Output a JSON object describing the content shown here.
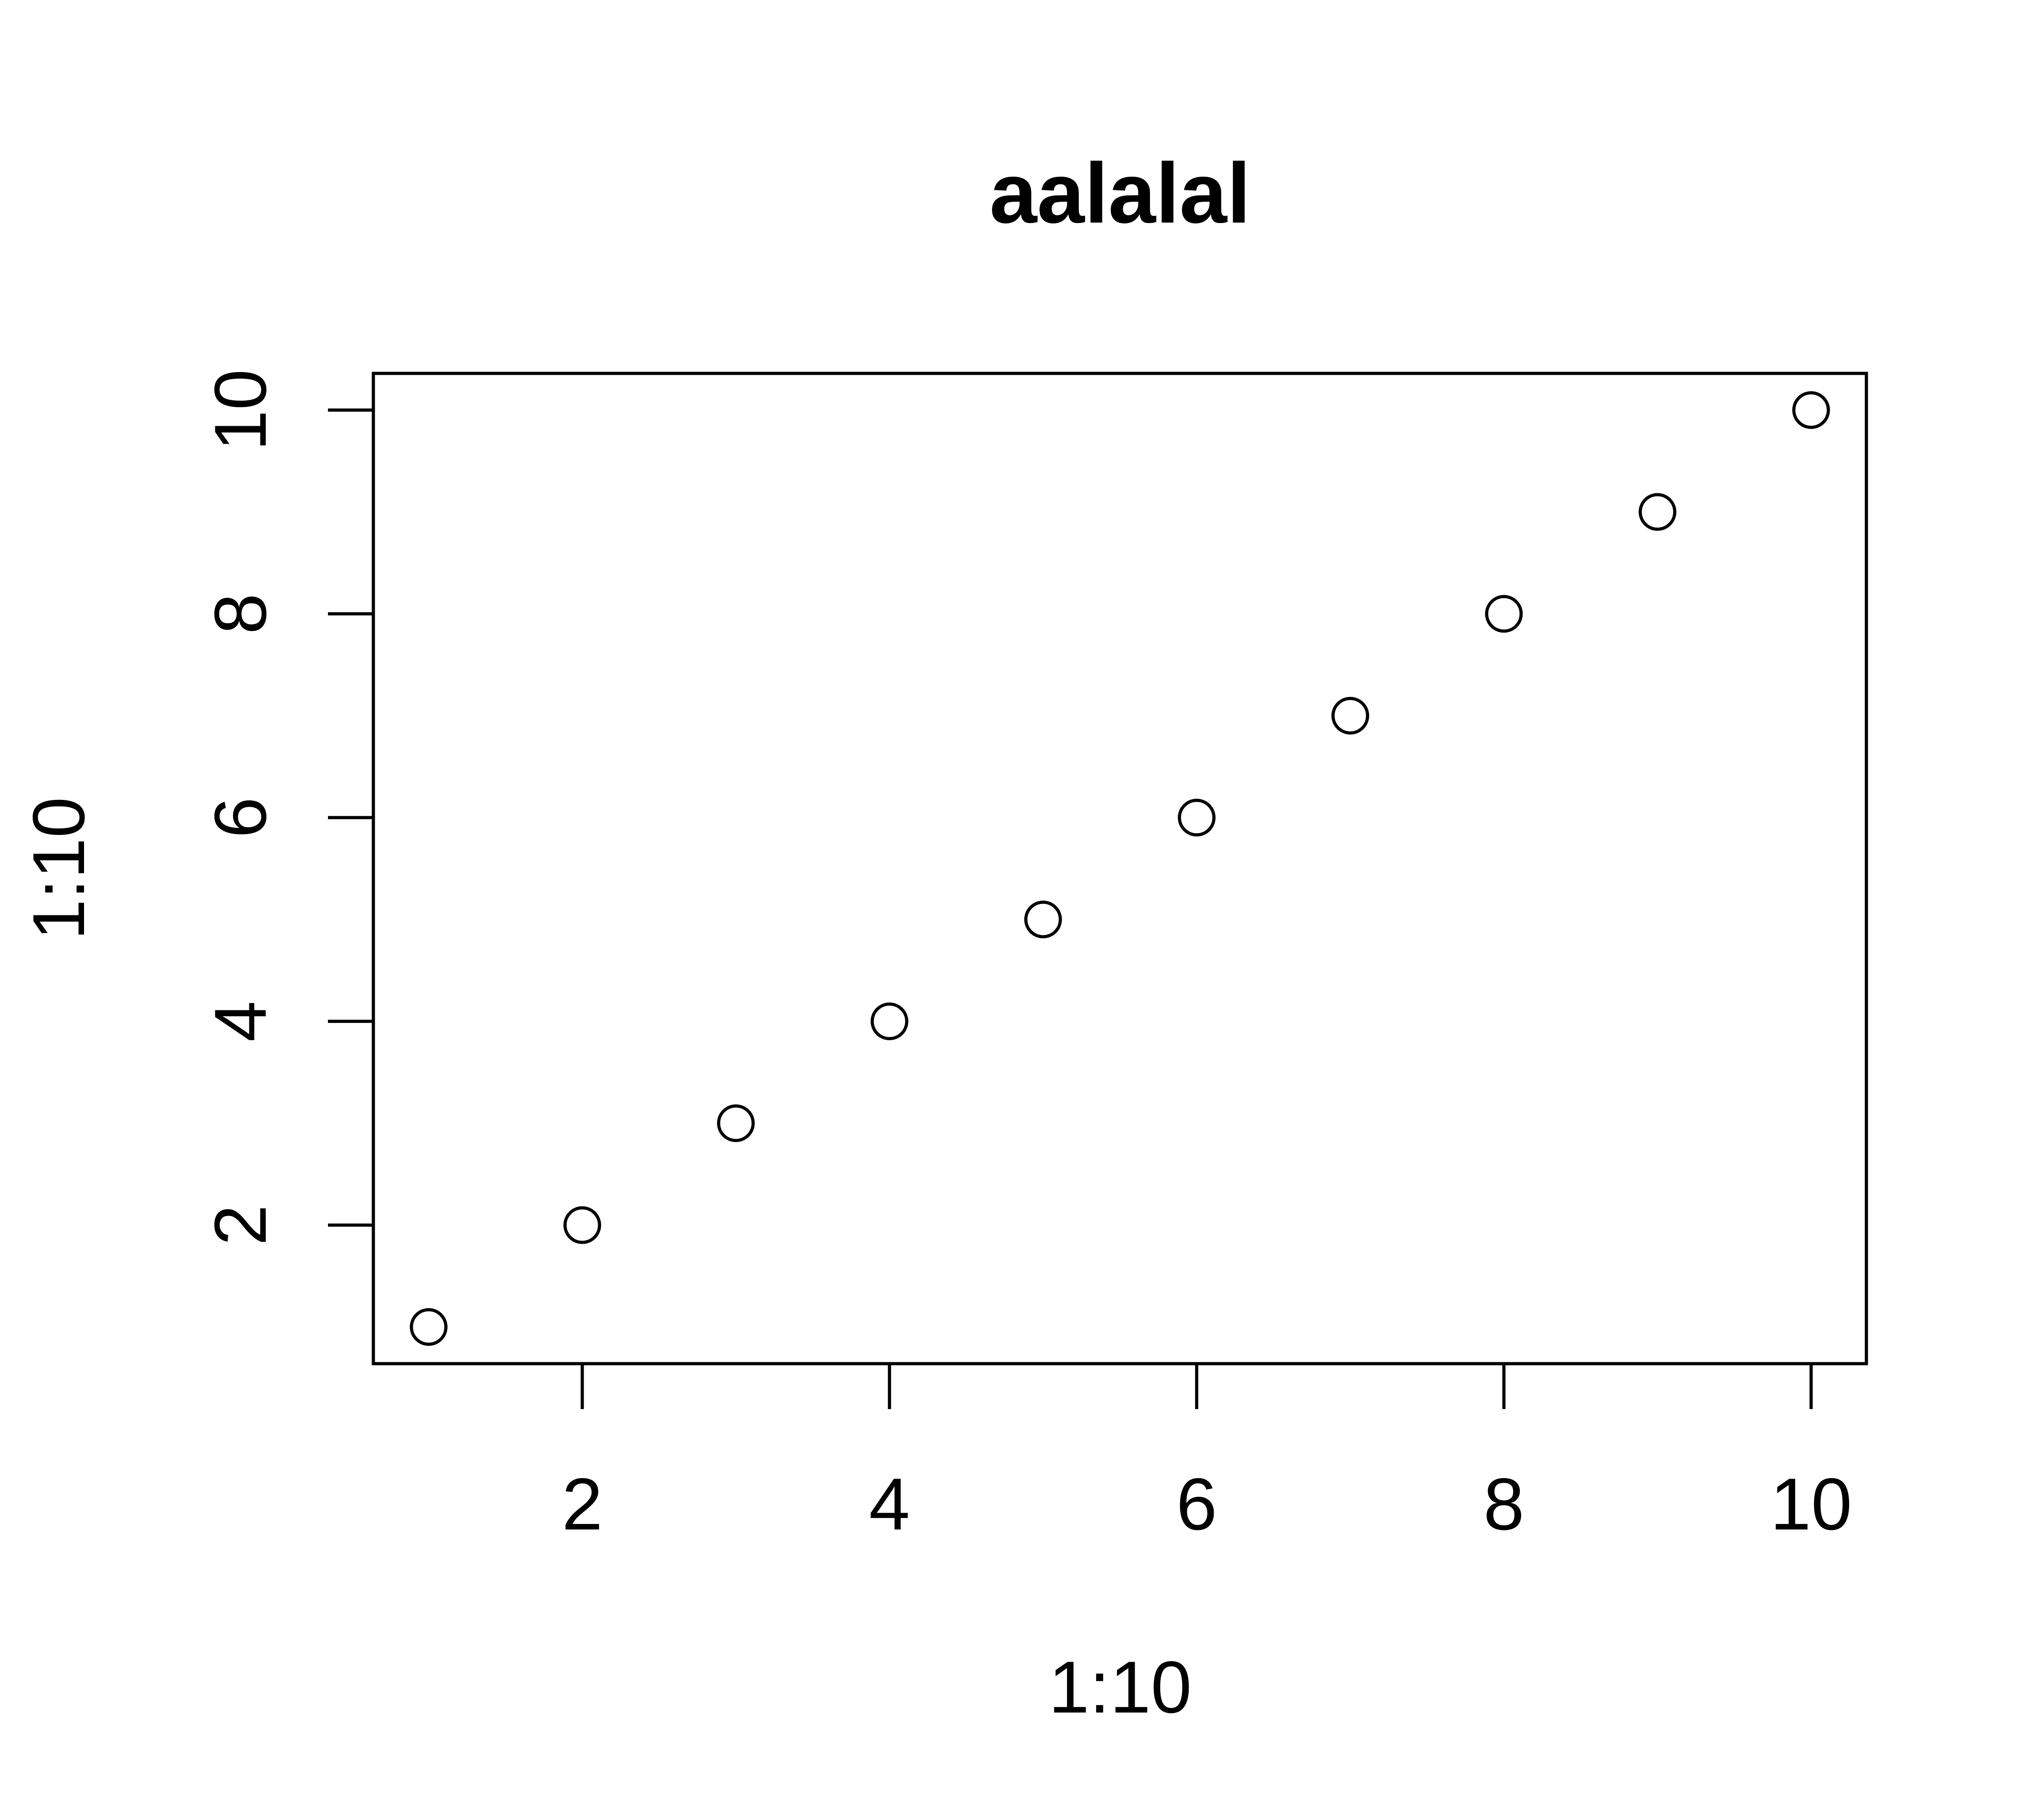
{
  "chart_data": {
    "type": "scatter",
    "title": "aalalal",
    "xlabel": "1:10",
    "ylabel": "1:10",
    "xlim": [
      0.64,
      10.36
    ],
    "ylim": [
      0.64,
      10.36
    ],
    "x_ticks": [
      2,
      4,
      6,
      8,
      10
    ],
    "y_ticks": [
      2,
      4,
      6,
      8,
      10
    ],
    "x_tick_labels": [
      "2",
      "4",
      "6",
      "8",
      "10"
    ],
    "y_tick_labels": [
      "2",
      "4",
      "6",
      "8",
      "10"
    ],
    "x": [
      1,
      2,
      3,
      4,
      5,
      6,
      7,
      8,
      9,
      10
    ],
    "y": [
      1,
      2,
      3,
      4,
      5,
      6,
      7,
      8,
      9,
      10
    ],
    "marker": "open-circle",
    "grid": false,
    "legend": "none",
    "colors": {
      "points": "#000000",
      "axes": "#000000",
      "background": "#ffffff"
    }
  }
}
